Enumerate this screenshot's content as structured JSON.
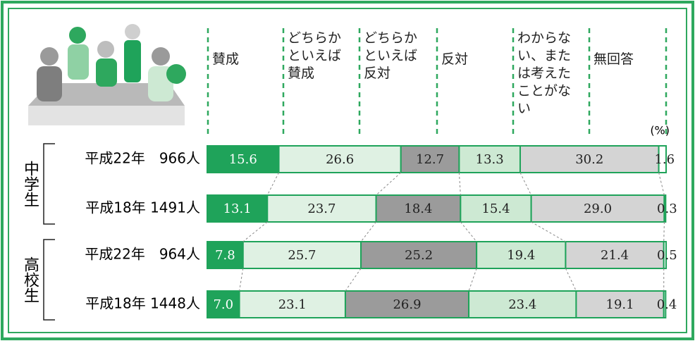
{
  "chart_data": {
    "type": "stacked-bar-horizontal",
    "unit": "(%)",
    "groups": [
      {
        "name": "中学生",
        "categories": [
          "平成22年　966人",
          "平成18年 1491人"
        ]
      },
      {
        "name": "高校生",
        "categories": [
          "平成22年　964人",
          "平成18年 1448人"
        ]
      }
    ],
    "xlim": [
      0,
      100
    ],
    "series": [
      {
        "name": "賛成",
        "color": "#1fa35a",
        "values": [
          15.6,
          13.1,
          7.8,
          7.0
        ],
        "value_labels": [
          "15.6",
          "13.1",
          "7.8",
          "7.0"
        ]
      },
      {
        "name": "どちらかといえば賛成",
        "color": "#dff1e3",
        "values": [
          26.6,
          23.7,
          25.7,
          23.1
        ]
      },
      {
        "name": "どちらかといえば反対",
        "color": "#9b9b9b",
        "values": [
          12.7,
          18.4,
          25.2,
          26.9
        ]
      },
      {
        "name": "反対",
        "color": "#cde9d3",
        "values": [
          13.3,
          15.4,
          19.4,
          23.4
        ]
      },
      {
        "name": "わからない、または考えたことがない",
        "color": "#d4d4d4",
        "values": [
          30.2,
          29.0,
          21.4,
          19.1
        ],
        "value_labels": [
          "30.2",
          "29.0",
          "21.4",
          "19.1"
        ]
      },
      {
        "name": "無回答",
        "color": "#ffffff",
        "values": [
          1.6,
          0.3,
          0.5,
          0.4
        ]
      }
    ]
  }
}
